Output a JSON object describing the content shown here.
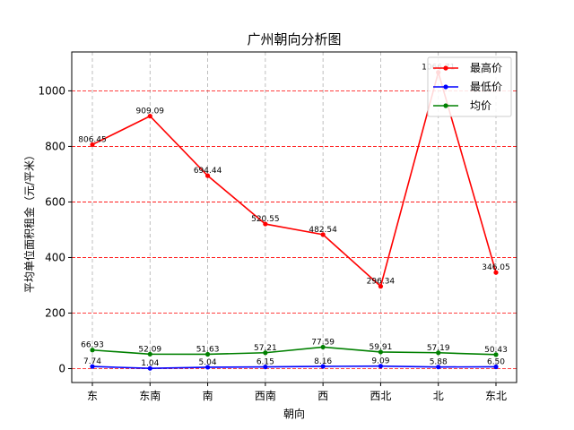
{
  "chart_data": {
    "type": "line",
    "title": "广州朝向分析图",
    "xlabel": "朝向",
    "ylabel": "平均单位面积租金（元/平米）",
    "categories": [
      "东",
      "东南",
      "南",
      "西南",
      "西",
      "西北",
      "北",
      "东北"
    ],
    "ylim": [
      -50,
      1140
    ],
    "yticks": [
      0,
      200,
      400,
      600,
      800,
      1000
    ],
    "grid": true,
    "legend_position": "top-right",
    "series": [
      {
        "name": "最高价",
        "color": "#ff0000",
        "values": [
          806.45,
          909.09,
          694.44,
          520.55,
          482.54,
          296.34,
          1066.71,
          346.05
        ],
        "labels": [
          "806.45",
          "909.09",
          "694.44",
          "520.55",
          "482.54",
          "296.34",
          "1066.71",
          "346.05"
        ]
      },
      {
        "name": "最低价",
        "color": "#0000ff",
        "values": [
          7.74,
          1.04,
          5.04,
          6.15,
          8.16,
          9.09,
          5.88,
          6.5
        ],
        "labels": [
          "7.74",
          "1.04",
          "5.04",
          "6.15",
          "8.16",
          "9.09",
          "5.88",
          "6.50"
        ]
      },
      {
        "name": "均价",
        "color": "#008000",
        "values": [
          66.93,
          52.09,
          51.63,
          57.21,
          77.59,
          59.91,
          57.19,
          50.43
        ],
        "labels": [
          "66.93",
          "52.09",
          "51.63",
          "57.21",
          "77.59",
          "59.91",
          "57.19",
          "50.43"
        ]
      }
    ]
  }
}
